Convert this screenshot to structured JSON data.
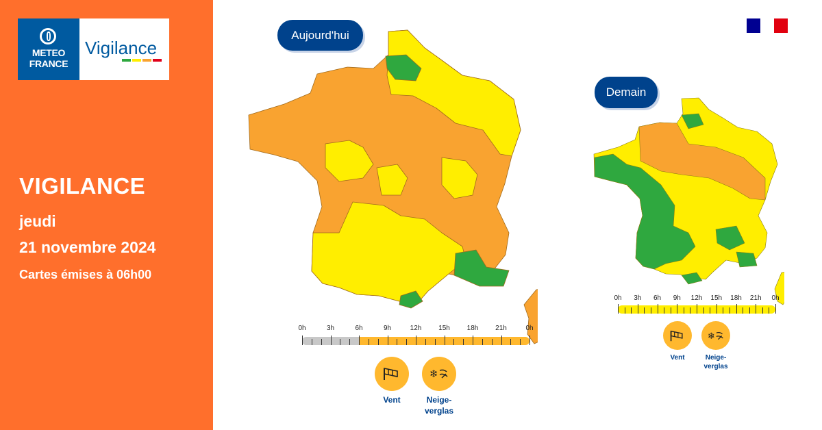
{
  "colors": {
    "orange_bg": "#ff6f2c",
    "navy": "#00428c",
    "vig_green": "#2fa83f",
    "vig_yellow": "#ffee00",
    "vig_orange": "#f9a330",
    "timeline_orange": "#ffb82e",
    "timeline_yellow": "#ffee00"
  },
  "logo": {
    "line1": "METEO",
    "line2": "FRANCE",
    "vigilance": "Vigilance",
    "bars": [
      "#2fa83f",
      "#ffee00",
      "#f9a330",
      "#e0001a"
    ]
  },
  "header": {
    "title": "VIGILANCE",
    "day": "jeudi",
    "date": "21 novembre 2024",
    "issued": "Cartes émises à 06h00"
  },
  "flag": {
    "colors": [
      "#000091",
      "#ffffff",
      "#e1000f"
    ]
  },
  "today": {
    "label": "Aujourd'hui",
    "timeline": {
      "ticks": [
        "0h",
        "3h",
        "6h",
        "9h",
        "12h",
        "15h",
        "18h",
        "21h",
        "0h"
      ],
      "elapsed_hours": 6,
      "level_color": "#ffb82e"
    },
    "hazards": [
      {
        "icon": "wind-icon",
        "label": "Vent"
      },
      {
        "icon": "snow-ice-icon",
        "label": "Neige-verglas"
      }
    ]
  },
  "tomorrow": {
    "label": "Demain",
    "timeline": {
      "ticks": [
        "0h",
        "3h",
        "6h",
        "9h",
        "12h",
        "15h",
        "18h",
        "21h",
        "0h"
      ],
      "elapsed_hours": 0,
      "level_color": "#ffee00"
    },
    "hazards": [
      {
        "icon": "wind-icon",
        "label": "Vent"
      },
      {
        "icon": "snow-ice-icon",
        "label": "Neige-verglas"
      }
    ]
  }
}
